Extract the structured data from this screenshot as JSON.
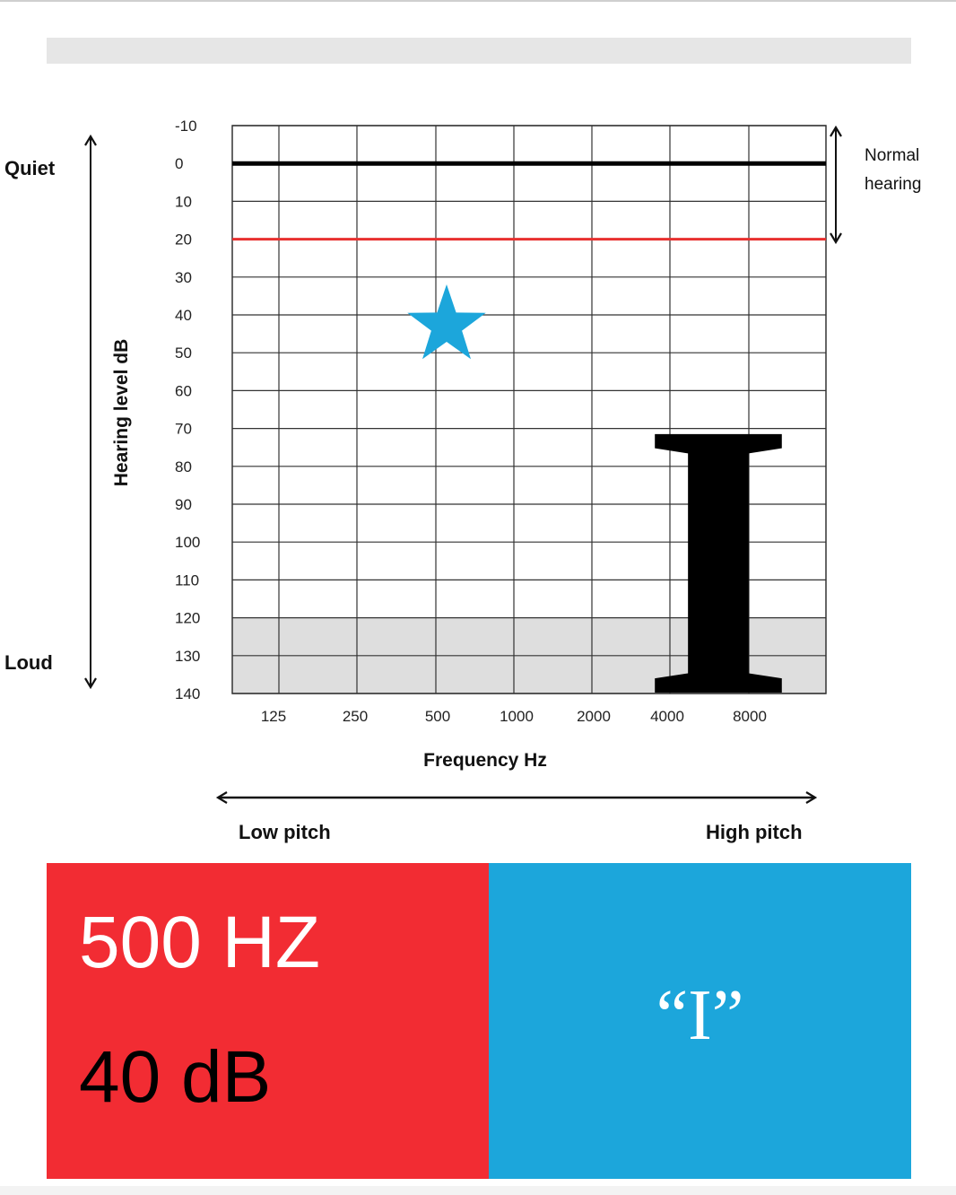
{
  "chart_data": {
    "type": "audiogram",
    "ylabel": "Hearing level dB",
    "xlabel": "Frequency Hz",
    "y_ticks": [
      "-10",
      "0",
      "10",
      "20",
      "30",
      "40",
      "50",
      "60",
      "70",
      "80",
      "90",
      "100",
      "110",
      "120",
      "130",
      "140"
    ],
    "x_ticks": [
      "125",
      "250",
      "500",
      "1000",
      "2000",
      "4000",
      "8000"
    ],
    "ylim": [
      -10,
      140
    ],
    "y_inverted": true,
    "grid": true,
    "shaded_range_db": [
      120,
      140
    ],
    "reference_lines": [
      {
        "y": 0,
        "color": "#000000"
      },
      {
        "y": 20,
        "color": "#e8302f"
      }
    ],
    "normal_hearing_range_db": [
      0,
      20
    ],
    "marker": {
      "frequency": "500",
      "db": 40,
      "shape": "star",
      "color": "#1ca6db"
    },
    "large_letter": "I",
    "large_letter_range_db": [
      70,
      140
    ],
    "annotations": {
      "top_left": "Quiet",
      "bottom_left": "Loud",
      "normal_line1": "Normal",
      "normal_line2": "hearing",
      "low_pitch": "Low pitch",
      "high_pitch": "High pitch"
    }
  },
  "info_panel": {
    "frequency": "500 HZ",
    "level": "40 dB",
    "sound": "“I”"
  },
  "colors": {
    "panel_red": "#f22c33",
    "panel_blue": "#1ca6db",
    "star": "#1ca6db",
    "red_line": "#e8302f"
  }
}
